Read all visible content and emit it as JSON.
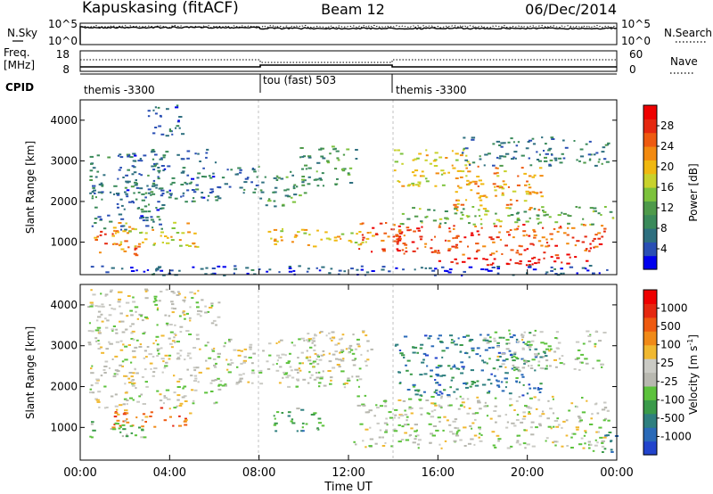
{
  "chart_data": {
    "type": "heatmap",
    "title": {
      "station": "Kapuskasing (fitACF)",
      "beam": "Beam 12",
      "date": "06/Dec/2014"
    },
    "top_panels": {
      "nsky": {
        "label": "N.Sky",
        "ticks": [
          "10^5",
          "10^0"
        ],
        "right_label": "N.Search",
        "right_ticks": [
          "10^5",
          "10^0"
        ]
      },
      "freq": {
        "label_line1": "Freq.",
        "label_line2": "[MHz]",
        "ticks": [
          "18",
          "8"
        ],
        "right_label": "Nave",
        "right_ticks": [
          "60",
          "0"
        ]
      },
      "cpid": {
        "label": "CPID",
        "segments": [
          {
            "label": "themis -3300",
            "start_hour": 0,
            "end_hour": 8
          },
          {
            "label": "tou (fast) 503",
            "start_hour": 8,
            "end_hour": 14
          },
          {
            "label": "themis -3300",
            "start_hour": 14,
            "end_hour": 24
          }
        ]
      }
    },
    "x_axis": {
      "label": "Time UT",
      "ticks": [
        "00:00",
        "04:00",
        "08:00",
        "12:00",
        "16:00",
        "20:00",
        "00:00"
      ],
      "range_hours": [
        0,
        24
      ]
    },
    "panels": [
      {
        "name": "power",
        "ylabel": "Slant Range [km]",
        "yticks": [
          "4000",
          "3000",
          "2000",
          "1000"
        ],
        "ylim_km": [
          200,
          4500
        ],
        "colorbar": {
          "label": "Power [dB]",
          "ticks": [
            "28",
            "24",
            "20",
            "16",
            "12",
            "8",
            "4"
          ],
          "range": [
            0,
            30
          ],
          "colors": [
            "#0000ee",
            "#2a4fb4",
            "#2e6f7f",
            "#3a8a5a",
            "#4e9a4a",
            "#7cc23c",
            "#c8d22c",
            "#f0b810",
            "#f28a10",
            "#ee5a10",
            "#e52810",
            "#ee0000"
          ]
        },
        "regions": [
          {
            "t": [
              0.5,
              2.6
            ],
            "r": [
              700,
              1300
            ],
            "level": 0.78
          },
          {
            "t": [
              0.4,
              3.8
            ],
            "r": [
              1300,
              3200
            ],
            "level": 0.22
          },
          {
            "t": [
              1.4,
              5.2
            ],
            "r": [
              900,
              1500
            ],
            "level": 0.6
          },
          {
            "t": [
              2.0,
              6.2
            ],
            "r": [
              2000,
              3300
            ],
            "level": 0.2
          },
          {
            "t": [
              3.0,
              4.6
            ],
            "r": [
              3600,
              4400
            ],
            "level": 0.18
          },
          {
            "t": [
              6.3,
              8.0
            ],
            "r": [
              2200,
              2900
            ],
            "level": 0.22
          },
          {
            "t": [
              8.3,
              10.6
            ],
            "r": [
              900,
              1400
            ],
            "level": 0.62
          },
          {
            "t": [
              8.0,
              10.2
            ],
            "r": [
              1900,
              2800
            ],
            "level": 0.3
          },
          {
            "t": [
              9.8,
              12.3
            ],
            "r": [
              2400,
              3400
            ],
            "level": 0.34
          },
          {
            "t": [
              10.6,
              13.2
            ],
            "r": [
              900,
              1300
            ],
            "level": 0.55
          },
          {
            "t": [
              12.4,
              14.6
            ],
            "r": [
              700,
              1500
            ],
            "level": 0.8
          },
          {
            "t": [
              14.0,
              23.6
            ],
            "r": [
              700,
              1450
            ],
            "level": 0.82
          },
          {
            "t": [
              14.2,
              23.8
            ],
            "r": [
              1450,
              1900
            ],
            "level": 0.4
          },
          {
            "t": [
              14.0,
              17.4
            ],
            "r": [
              2400,
              3300
            ],
            "level": 0.58
          },
          {
            "t": [
              16.6,
              20.6
            ],
            "r": [
              1800,
              2900
            ],
            "level": 0.7
          },
          {
            "t": [
              17.0,
              23.6
            ],
            "r": [
              2900,
              3600
            ],
            "level": 0.24
          },
          {
            "t": [
              16.0,
              23.4
            ],
            "r": [
              420,
              660
            ],
            "level": 0.97
          },
          {
            "t": [
              0.3,
              23.8
            ],
            "r": [
              200,
              450
            ],
            "level": 0.12
          }
        ]
      },
      {
        "name": "velocity",
        "ylabel": "Slant Range [km]",
        "yticks": [
          "4000",
          "3000",
          "2000",
          "1000"
        ],
        "ylim_km": [
          200,
          4500
        ],
        "colorbar": {
          "label": "Velocity [m s^-1]",
          "ticks": [
            "1000",
            "500",
            "100",
            "25",
            "-25",
            "-100",
            "-500",
            "-1000"
          ],
          "range": [
            -1000,
            1000
          ],
          "colors": [
            "#2244cc",
            "#2a6ab8",
            "#2e7f7f",
            "#3a9a4a",
            "#5cc23c",
            "#b8b8b0",
            "#cacac4",
            "#f0b830",
            "#f08a18",
            "#ee5a10",
            "#e52810",
            "#ee0000"
          ]
        },
        "regions": [
          {
            "t": [
              0.3,
              6.2
            ],
            "r": [
              1500,
              4400
            ],
            "level": 0.5
          },
          {
            "t": [
              1.4,
              5.0
            ],
            "r": [
              1000,
              1500
            ],
            "level": 0.74
          },
          {
            "t": [
              0.4,
              3.0
            ],
            "r": [
              700,
              1200
            ],
            "level": 0.38
          },
          {
            "t": [
              6.0,
              12.5
            ],
            "r": [
              2000,
              3200
            ],
            "level": 0.48
          },
          {
            "t": [
              8.5,
              10.8
            ],
            "r": [
              900,
              1500
            ],
            "level": 0.3
          },
          {
            "t": [
              10.0,
              13.0
            ],
            "r": [
              2500,
              3400
            ],
            "level": 0.52
          },
          {
            "t": [
              12.2,
              23.6
            ],
            "r": [
              500,
              1800
            ],
            "level": 0.48
          },
          {
            "t": [
              14.0,
              20.8
            ],
            "r": [
              1800,
              3300
            ],
            "level": 0.2
          },
          {
            "t": [
              18.0,
              23.4
            ],
            "r": [
              2400,
              3400
            ],
            "level": 0.46
          },
          {
            "t": [
              22.8,
              24.0
            ],
            "r": [
              400,
              900
            ],
            "level": 0.25
          }
        ]
      }
    ]
  }
}
